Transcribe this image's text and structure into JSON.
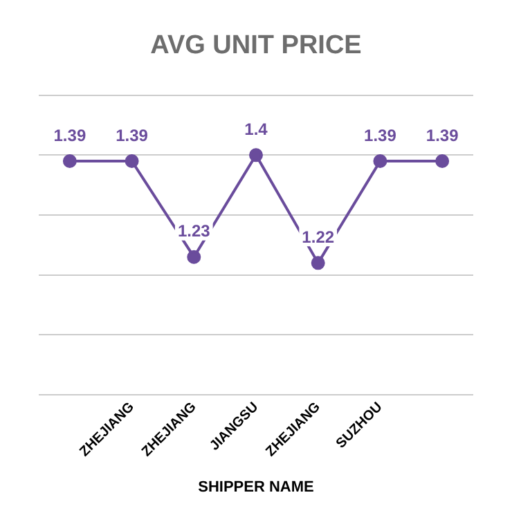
{
  "chart_data": {
    "type": "line",
    "title": "AVG UNIT PRICE",
    "xlabel": "SHIPPER NAME",
    "categories": [
      null,
      "ZHEJIANG",
      "ZHEJIANG",
      "JIANGSU",
      "ZHEJIANG",
      "SUZHOU",
      null
    ],
    "series": [
      {
        "color": "#6a4c9c",
        "values": [
          1.39,
          1.39,
          1.23,
          1.4,
          1.22,
          1.39,
          1.39
        ]
      }
    ],
    "ylim": [
      1.0,
      1.5
    ],
    "yticks": [
      {
        "value": 1.0,
        "label": null
      },
      {
        "value": 1.1,
        "label": null
      },
      {
        "value": 1.2,
        "label": null
      },
      {
        "value": 1.3,
        "label": null
      },
      {
        "value": 1.4,
        "label": null
      },
      {
        "value": 1.5,
        "label": null
      }
    ],
    "tick_labels": "x",
    "grid": "y",
    "legend": false,
    "marker": "circle",
    "line_style": "solid",
    "data_labels": true
  }
}
